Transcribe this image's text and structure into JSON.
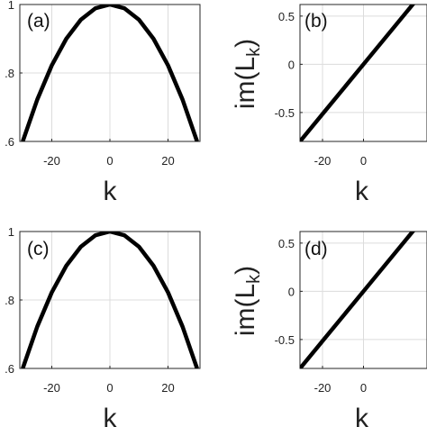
{
  "chart_data": [
    {
      "panel": "(a)",
      "type": "line",
      "x": [
        -30,
        -25,
        -20,
        -15,
        -10,
        -5,
        0,
        5,
        10,
        15,
        20,
        25,
        30
      ],
      "y": [
        0.6,
        0.7222,
        0.8222,
        0.9,
        0.9556,
        0.9889,
        1.0,
        0.9889,
        0.9556,
        0.9,
        0.8222,
        0.7222,
        0.6
      ],
      "xlabel": "k",
      "ylabel": "",
      "xlim": [
        -31,
        31
      ],
      "ylim": [
        0.6,
        1.0
      ],
      "xticks": [
        "-20",
        "0",
        "20"
      ],
      "yticks": [
        ".6",
        ".8",
        "1"
      ],
      "grid": true
    },
    {
      "panel": "(b)",
      "type": "line",
      "x": [
        -31,
        -20,
        0,
        20,
        31
      ],
      "y": [
        -0.8,
        -0.5161,
        0.0,
        0.5161,
        0.8
      ],
      "xlabel": "k",
      "ylabel_main": "im(L",
      "ylabel_sub": "k",
      "ylabel_close": ")",
      "xlim": [
        -31,
        31
      ],
      "ylim": [
        -0.8,
        0.62
      ],
      "xticks": [
        "-20",
        "0"
      ],
      "yticks": [
        "0.5",
        "0",
        "-0.5"
      ],
      "grid": true
    },
    {
      "panel": "(c)",
      "type": "line",
      "x": [
        -30,
        -25,
        -20,
        -15,
        -10,
        -5,
        0,
        5,
        10,
        15,
        20,
        25,
        30
      ],
      "y": [
        0.6,
        0.7222,
        0.8222,
        0.9,
        0.9556,
        0.9889,
        1.0,
        0.9889,
        0.9556,
        0.9,
        0.8222,
        0.7222,
        0.6
      ],
      "xlabel": "k",
      "ylabel": "",
      "xlim": [
        -31,
        31
      ],
      "ylim": [
        0.6,
        1.0
      ],
      "xticks": [
        "-20",
        "0",
        "20"
      ],
      "yticks": [
        ".6",
        ".8",
        "1"
      ],
      "grid": true
    },
    {
      "panel": "(d)",
      "type": "line",
      "x": [
        -31,
        -20,
        0,
        20,
        31
      ],
      "y": [
        -0.8,
        -0.5161,
        0.0,
        0.5161,
        0.8
      ],
      "xlabel": "k",
      "ylabel_main": "im(L",
      "ylabel_sub": "k",
      "ylabel_close": ")",
      "xlim": [
        -31,
        31
      ],
      "ylim": [
        -0.8,
        0.62
      ],
      "xticks": [
        "-20",
        "0"
      ],
      "yticks": [
        "0.5",
        "0",
        "-0.5"
      ],
      "grid": true
    }
  ]
}
